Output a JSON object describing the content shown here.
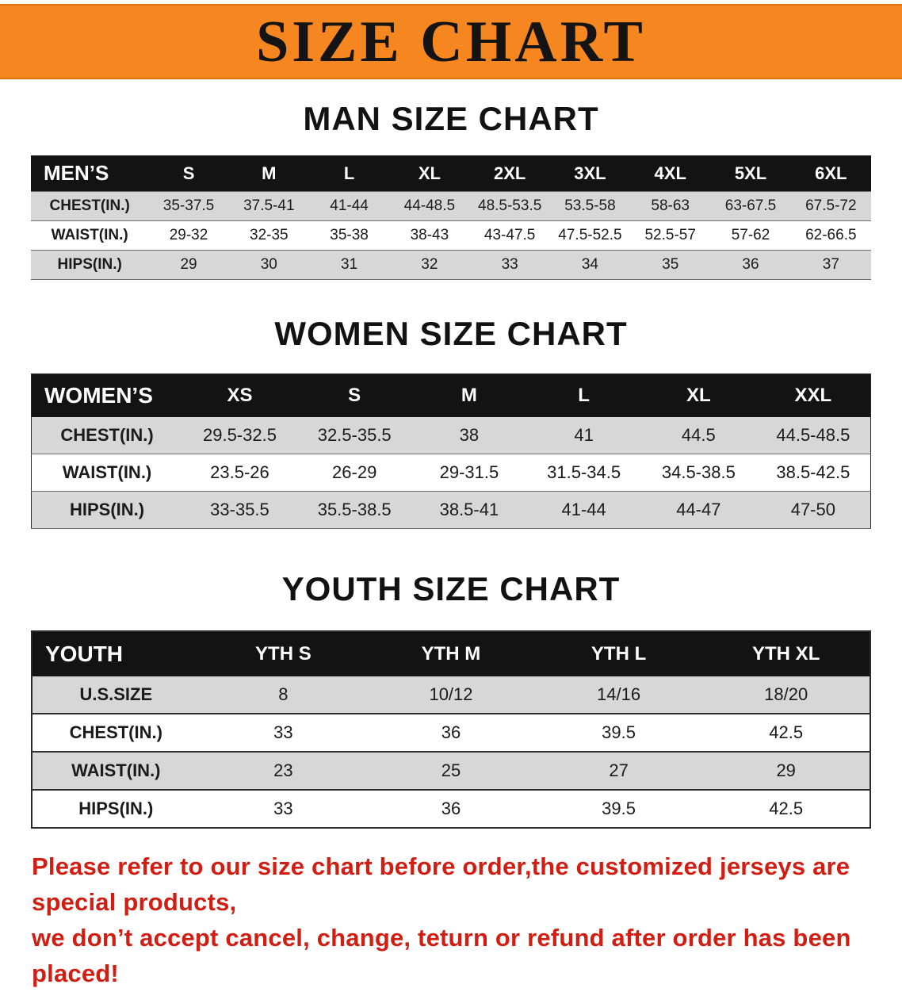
{
  "banner": {
    "title": "SIZE CHART"
  },
  "men": {
    "heading": "MAN SIZE CHART",
    "header": [
      "MEN’S",
      "S",
      "M",
      "L",
      "XL",
      "2XL",
      "3XL",
      "4XL",
      "5XL",
      "6XL"
    ],
    "rows": [
      [
        "CHEST(IN.)",
        "35-37.5",
        "37.5-41",
        "41-44",
        "44-48.5",
        "48.5-53.5",
        "53.5-58",
        "58-63",
        "63-67.5",
        "67.5-72"
      ],
      [
        "WAIST(IN.)",
        "29-32",
        "32-35",
        "35-38",
        "38-43",
        "43-47.5",
        "47.5-52.5",
        "52.5-57",
        "57-62",
        "62-66.5"
      ],
      [
        "HIPS(IN.)",
        "29",
        "30",
        "31",
        "32",
        "33",
        "34",
        "35",
        "36",
        "37"
      ]
    ]
  },
  "women": {
    "heading": "WOMEN SIZE CHART",
    "header": [
      "WOMEN’S",
      "XS",
      "S",
      "M",
      "L",
      "XL",
      "XXL"
    ],
    "rows": [
      [
        "CHEST(IN.)",
        "29.5-32.5",
        "32.5-35.5",
        "38",
        "41",
        "44.5",
        "44.5-48.5"
      ],
      [
        "WAIST(IN.)",
        "23.5-26",
        "26-29",
        "29-31.5",
        "31.5-34.5",
        "34.5-38.5",
        "38.5-42.5"
      ],
      [
        "HIPS(IN.)",
        "33-35.5",
        "35.5-38.5",
        "38.5-41",
        "41-44",
        "44-47",
        "47-50"
      ]
    ]
  },
  "youth": {
    "heading": "YOUTH SIZE CHART",
    "header": [
      "YOUTH",
      "YTH S",
      "YTH M",
      "YTH L",
      "YTH XL"
    ],
    "rows": [
      [
        "U.S.SIZE",
        "8",
        "10/12",
        "14/16",
        "18/20"
      ],
      [
        "CHEST(IN.)",
        "33",
        "36",
        "39.5",
        "42.5"
      ],
      [
        "WAIST(IN.)",
        "23",
        "25",
        "27",
        "29"
      ],
      [
        "HIPS(IN.)",
        "33",
        "36",
        "39.5",
        "42.5"
      ]
    ]
  },
  "footer": {
    "line1": "Please refer to our size chart before order,the customized jerseys are special products,",
    "line2": "we don’t accept cancel, change, teturn or refund after order has been placed!"
  },
  "colors": {
    "banner_bg": "#f6861f",
    "table_header_bg": "#131313",
    "table_header_text": "#ffffff",
    "row_alt_bg": "#d7d7d7",
    "footer_text": "#d21e12"
  }
}
